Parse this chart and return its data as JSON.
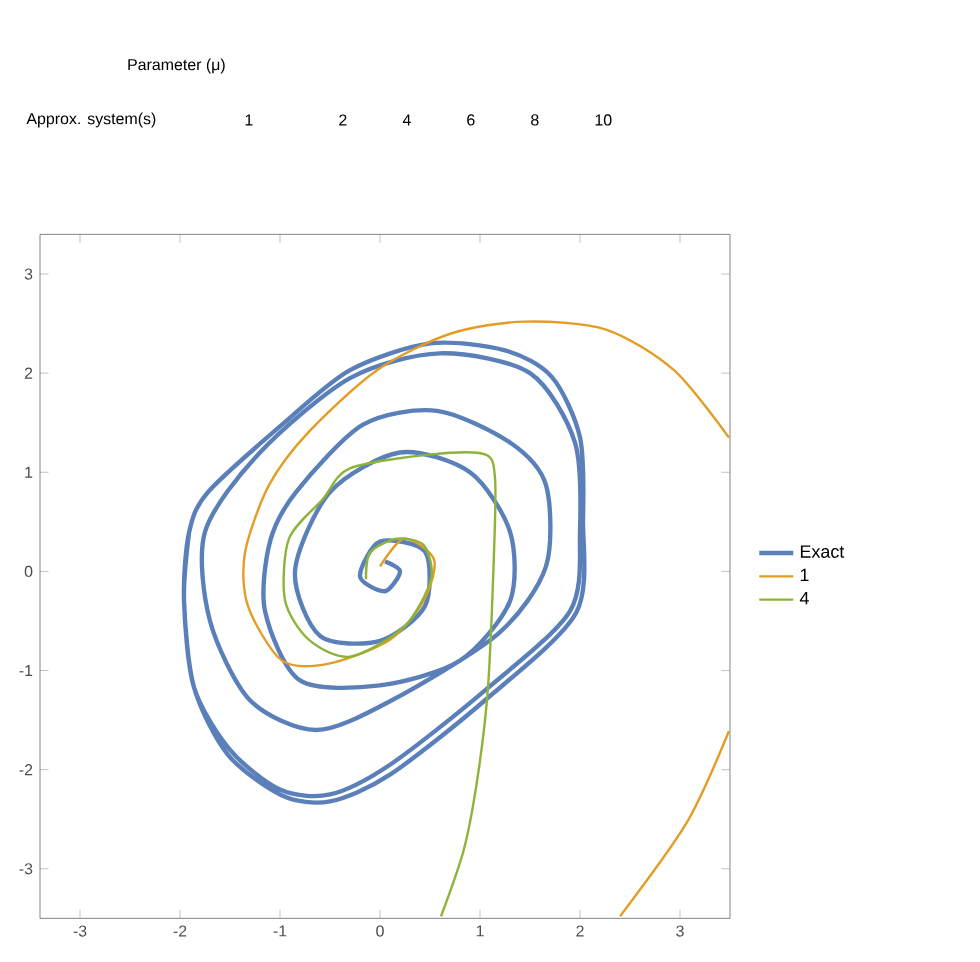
{
  "chart_data": {
    "type": "line",
    "annotations": [
      "Parameter (μ)",
      "Approx. system(s)",
      "1",
      "2",
      "4",
      "6",
      "8",
      "10"
    ],
    "xlim": [
      -3.4,
      3.5
    ],
    "ylim": [
      -3.5,
      3.4
    ],
    "xticks": [
      -3,
      -2,
      -1,
      0,
      1,
      2,
      3
    ],
    "yticks": [
      -3,
      -2,
      -1,
      0,
      1,
      2,
      3
    ],
    "legend": "right",
    "grid": false,
    "marker": "none",
    "line_style": "solid",
    "series": [
      {
        "name": "Exact",
        "color": "#5b80b9",
        "x": [
          0.05,
          0.2,
          0.05,
          -0.2,
          0.0,
          0.45,
          0.45,
          0.0,
          -0.6,
          -0.85,
          -0.5,
          0.2,
          0.9,
          1.3,
          1.3,
          0.8,
          0.0,
          -0.8,
          -1.15,
          -1.1,
          -0.84,
          -0.17,
          0.57,
          1.3,
          1.66,
          1.66,
          1.18,
          0.1,
          -0.64,
          -1.3,
          -1.7,
          -1.75,
          -1.2,
          -0.3,
          0.6,
          1.5,
          1.95,
          2.0,
          1.9,
          1.05,
          0.1,
          -0.5,
          -1.0,
          -1.5,
          -1.86,
          -1.96,
          -1.91,
          -1.72,
          -0.98,
          -0.3,
          0.5,
          1.25,
          1.72,
          2.0,
          2.03,
          1.96,
          1.05,
          0.1,
          -0.5,
          -0.98,
          -1.52,
          -1.86,
          -1.96,
          -1.91
        ],
        "values": [
          0.1,
          0.0,
          -0.2,
          -0.05,
          0.3,
          0.2,
          -0.35,
          -0.7,
          -0.65,
          0.0,
          0.8,
          1.2,
          1.0,
          0.4,
          -0.3,
          -0.9,
          -1.15,
          -1.1,
          -0.4,
          0.3,
          0.8,
          1.48,
          1.62,
          1.3,
          0.87,
          0.05,
          -0.63,
          -1.31,
          -1.6,
          -1.3,
          -0.5,
          0.4,
          1.2,
          1.95,
          2.2,
          2.0,
          1.3,
          0.4,
          -0.4,
          -1.2,
          -1.95,
          -2.25,
          -2.2,
          -1.8,
          -1.17,
          -0.29,
          0.39,
          0.8,
          1.48,
          2.03,
          2.3,
          2.23,
          1.96,
          1.35,
          0.53,
          -0.42,
          -1.3,
          -2.05,
          -2.32,
          -2.26,
          -1.85,
          -1.17,
          -0.29,
          0.39
        ]
      },
      {
        "name": "1",
        "color": "#e59c24",
        "x": [
          0.0,
          0.24,
          0.54,
          0.44,
          0.1,
          -0.51,
          -0.98,
          -1.32,
          -1.35,
          -1.11,
          -0.71,
          -0.03,
          0.71,
          1.45,
          2.26,
          2.94,
          3.49,
          null,
          3.49,
          3.07,
          2.4
        ],
        "values": [
          0.05,
          0.33,
          0.12,
          -0.29,
          -0.69,
          -0.93,
          -0.9,
          -0.35,
          0.19,
          0.87,
          1.41,
          2.03,
          2.4,
          2.52,
          2.44,
          2.03,
          1.35,
          null,
          -1.61,
          -2.53,
          -3.48
        ]
      },
      {
        "name": "4",
        "color": "#8db43a",
        "x": [
          -0.14,
          -0.1,
          0.17,
          0.44,
          0.51,
          0.24,
          -0.3,
          -0.71,
          -0.95,
          -0.91,
          -0.57,
          -0.3,
          0.51,
          1.05,
          1.15,
          1.14,
          1.08,
          0.98,
          0.84,
          0.61
        ],
        "values": [
          -0.08,
          0.19,
          0.33,
          0.26,
          -0.08,
          -0.56,
          -0.86,
          -0.69,
          -0.29,
          0.33,
          0.73,
          1.04,
          1.18,
          1.18,
          0.94,
          0.19,
          -1.17,
          -2.05,
          -2.8,
          -3.48
        ]
      }
    ]
  }
}
